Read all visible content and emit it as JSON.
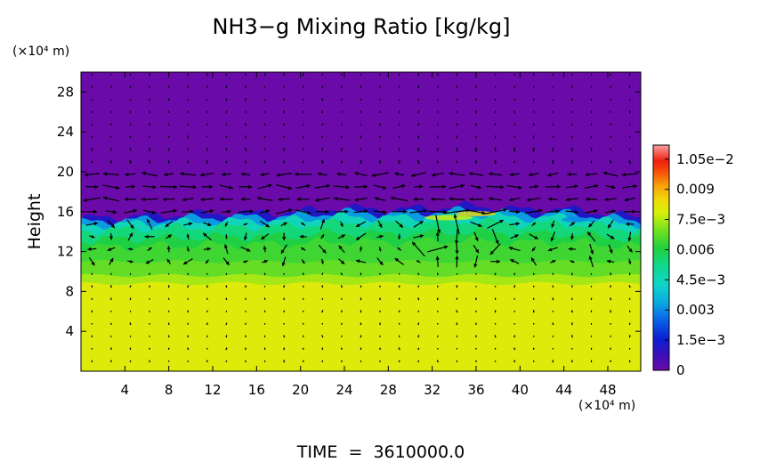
{
  "chart_data": {
    "type": "heatmap",
    "title": "NH3−g Mixing Ratio [kg/kg]",
    "xunit": "(×10⁴ m)",
    "yunit": "(×10⁴ m)",
    "ylabel": "Height",
    "footer": "TIME  =  3610000.0",
    "xlim": [
      0,
      51
    ],
    "ylim": [
      0,
      30
    ],
    "xticks": [
      4,
      8,
      12,
      16,
      20,
      24,
      28,
      32,
      36,
      40,
      44,
      48
    ],
    "yticks": [
      4,
      8,
      12,
      16,
      20,
      24,
      28
    ],
    "colorbar": {
      "range": [
        0,
        0.0112
      ],
      "tick_values": [
        0,
        0.0015,
        0.003,
        0.0045,
        0.006,
        0.0075,
        0.009,
        0.0105
      ],
      "tick_labels": [
        "0",
        "1.5e−3",
        "0.003",
        "4.5e−3",
        "0.006",
        "7.5e−3",
        "0.009",
        "1.05e−2"
      ]
    },
    "field": {
      "description": "estimated layered mixing ratio profile by height (x 10^4 m)",
      "profile": [
        {
          "height": 0,
          "value": 0.008
        },
        {
          "height": 9,
          "value": 0.008
        },
        {
          "height": 10,
          "value": 0.0068
        },
        {
          "height": 12,
          "value": 0.0062
        },
        {
          "height": 14,
          "value": 0.0058
        },
        {
          "height": 15,
          "value": 0.0048
        },
        {
          "height": 16,
          "value": 0.001
        },
        {
          "height": 17,
          "value": 0.0
        }
      ],
      "cloud_top": [
        {
          "x": 0,
          "height": 15.3
        },
        {
          "x": 6,
          "height": 15.6
        },
        {
          "x": 12,
          "height": 15.8
        },
        {
          "x": 18,
          "height": 15.9
        },
        {
          "x": 24,
          "height": 16.4
        },
        {
          "x": 28,
          "height": 16.2
        },
        {
          "x": 32,
          "height": 16.4
        },
        {
          "x": 36,
          "height": 16.6
        },
        {
          "x": 40,
          "height": 16.2
        },
        {
          "x": 44,
          "height": 16.3
        },
        {
          "x": 48,
          "height": 15.8
        },
        {
          "x": 51,
          "height": 15.4
        }
      ]
    },
    "wind_vectors": {
      "description": "black arrows on a regular grid, strongest near 16-20 (x 10^4 m) height",
      "dominant_direction_upper": "east-west alternating",
      "strong_band": [
        15,
        20
      ]
    }
  }
}
